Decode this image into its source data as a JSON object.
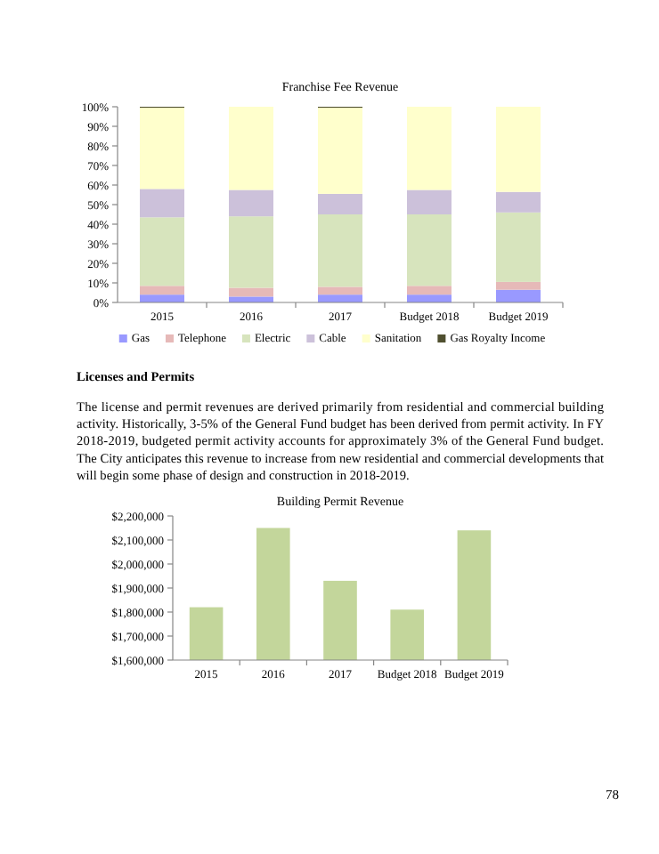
{
  "chart_data": [
    {
      "type": "bar",
      "title": "Franchise Fee Revenue",
      "stacked": true,
      "legend": "bottom",
      "grid": false,
      "categories": [
        "2015",
        "2016",
        "2017",
        "Budget 2018",
        "Budget 2019"
      ],
      "ylim": [
        0,
        100
      ],
      "yticks": [
        {
          "value": 0,
          "label": "0%"
        },
        {
          "value": 10,
          "label": "10%"
        },
        {
          "value": 20,
          "label": "20%"
        },
        {
          "value": 30,
          "label": "30%"
        },
        {
          "value": 40,
          "label": "40%"
        },
        {
          "value": 50,
          "label": "50%"
        },
        {
          "value": 60,
          "label": "60%"
        },
        {
          "value": 70,
          "label": "70%"
        },
        {
          "value": 80,
          "label": "80%"
        },
        {
          "value": 90,
          "label": "90%"
        },
        {
          "value": 100,
          "label": "100%"
        }
      ],
      "series": [
        {
          "name": "Gas",
          "color": "#9999ff",
          "values": [
            4,
            3,
            4,
            4,
            6.5
          ]
        },
        {
          "name": "Telephone",
          "color": "#e6b9b8",
          "values": [
            4.5,
            4.5,
            4,
            4.5,
            4
          ]
        },
        {
          "name": "Electric",
          "color": "#d7e4bd",
          "values": [
            35,
            36.5,
            37,
            36.5,
            35.5
          ]
        },
        {
          "name": "Cable",
          "color": "#ccc1da",
          "values": [
            14.5,
            13.5,
            10.5,
            12.5,
            10.5
          ]
        },
        {
          "name": "Sanitation",
          "color": "#ffffcc",
          "values": [
            41.5,
            42.5,
            44,
            42.5,
            43.5
          ]
        },
        {
          "name": "Gas Royalty Income",
          "color": "#4f4f2f",
          "values": [
            0.5,
            0,
            0.5,
            0,
            0
          ]
        }
      ]
    },
    {
      "type": "bar",
      "title": "Building Permit Revenue",
      "legend": false,
      "grid": false,
      "categories": [
        "2015",
        "2016",
        "2017",
        "Budget 2018",
        "Budget 2019"
      ],
      "ylim": [
        1600000,
        2200000
      ],
      "yticks": [
        {
          "value": 1600000,
          "label": "$1,600,000"
        },
        {
          "value": 1700000,
          "label": "$1,700,000"
        },
        {
          "value": 1800000,
          "label": "$1,800,000"
        },
        {
          "value": 1900000,
          "label": "$1,900,000"
        },
        {
          "value": 2000000,
          "label": "$2,000,000"
        },
        {
          "value": 2100000,
          "label": "$2,100,000"
        },
        {
          "value": 2200000,
          "label": "$2,200,000"
        }
      ],
      "series": [
        {
          "color": "#c3d69b",
          "values": [
            1820000,
            2150000,
            1930000,
            1810000,
            2140000
          ]
        }
      ],
      "annotations": [
        "Licenses and Permits",
        "The license and permit revenues are derived primarily from residential and commercial building activity. Historically, 3-5% of the General Fund budget has been derived from permit activity. In FY 2018-2019, budgeted permit activity accounts for approximately 3% of the General Fund budget. The City anticipates this revenue to increase from new residential and commercial developments that will begin some phase of design and construction in 2018-2019.",
        "78"
      ]
    }
  ]
}
